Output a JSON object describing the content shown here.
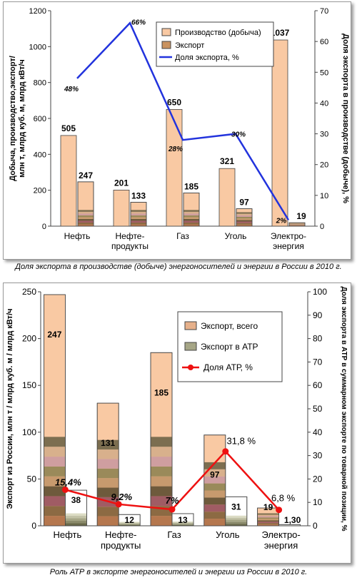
{
  "colors": {
    "bar_fill": "#f9c9a3",
    "export_fill": "#f9c9a3",
    "share_line": "#2233dd",
    "atp_line": "#ee1111",
    "stack_palette": [
      "#b5774e",
      "#8c6a43",
      "#a05c64",
      "#6e5a3c",
      "#c79a6e",
      "#9a8a5a",
      "#cf9ea0",
      "#d8b08c",
      "#7c6e50"
    ],
    "atp_palette": [
      "#6a6a4a",
      "#8a8a6a",
      "#a6a686",
      "#c2c2a6",
      "#dcdcc4"
    ]
  },
  "captions": {
    "chart1": "Доля экспорта в производстве (добыче) энергоносителей и энергии в России в 2010 г.",
    "chart2": "Роль АТР в экспорте энергоносителей и энергии из России в 2010 г."
  },
  "chart_data": [
    {
      "type": "bar",
      "categories": [
        "Нефть",
        "Нефте-\nпродукты",
        "Газ",
        "Уголь",
        "Электро-\nэнергия"
      ],
      "series": [
        {
          "name": "Производство (добыча)",
          "values": [
            505,
            201,
            650,
            321,
            1037
          ]
        },
        {
          "name": "Экспорт",
          "values": [
            247,
            133,
            185,
            97,
            19
          ]
        }
      ],
      "line": {
        "name": "Доля экспорта, %",
        "values": [
          48,
          66,
          28,
          30,
          2
        ],
        "labels": [
          "48%",
          "66%",
          "28%",
          "30%",
          "2%"
        ]
      },
      "bar_labels_production": [
        "505",
        "201",
        "650",
        "321",
        "1037"
      ],
      "bar_labels_export": [
        "247",
        "133",
        "185",
        "97",
        "19"
      ],
      "ylabel": "Добыча, производство,экспорт/ млн т, млрд куб. м, млрд кВт/ч",
      "y2label": "Доля экспорта в производстве (добыче), %",
      "ylim": [
        0,
        1200
      ],
      "yticks": [
        0,
        200,
        400,
        600,
        800,
        1000,
        1200
      ],
      "y2lim": [
        0,
        70
      ],
      "y2ticks": [
        0,
        10,
        20,
        30,
        40,
        50,
        60,
        70
      ],
      "legend": [
        "Производство (добыча)",
        "Экспорт",
        "Доля экспорта, %"
      ],
      "legend_position": "top-right",
      "grid": false
    },
    {
      "type": "bar",
      "categories": [
        "Нефть",
        "Нефте-\nпродукты",
        "Газ",
        "Уголь",
        "Электро-\nэнергия"
      ],
      "series": [
        {
          "name": "Экспорт, всего",
          "values": [
            247,
            131,
            185,
            97,
            19
          ]
        },
        {
          "name": "Экспорт в АТР",
          "values": [
            38,
            12,
            13,
            31,
            1.3
          ]
        }
      ],
      "line": {
        "name": "Доля АТР, %",
        "values": [
          15.4,
          9.2,
          7,
          31.8,
          6.8
        ],
        "labels": [
          "15,4%",
          "9,2%",
          "7%",
          "31,8 %",
          "6,8 %"
        ]
      },
      "bar_labels_total": [
        "247",
        "131",
        "185",
        "97",
        "19"
      ],
      "bar_labels_atp": [
        "38",
        "12",
        "13",
        "31",
        "1,30"
      ],
      "ylabel": "Экспорт из России, млн т / млрд куб. м / млрд кВт/ч",
      "y2label": "Доля экспорта в АТР в суммарном экспорте по товарной позиции, %",
      "ylim": [
        0,
        250
      ],
      "yticks": [
        0,
        50,
        100,
        150,
        200,
        250
      ],
      "y2lim": [
        0,
        100
      ],
      "y2ticks": [
        0,
        10,
        20,
        30,
        40,
        50,
        60,
        70,
        80,
        90,
        100
      ],
      "legend": [
        "Экспорт, всего",
        "Экспорт в АТР",
        "Доля АТР, %"
      ],
      "legend_position": "top-right",
      "grid": false
    }
  ]
}
